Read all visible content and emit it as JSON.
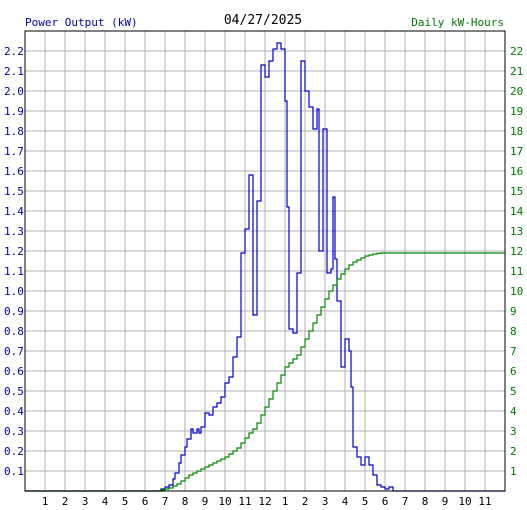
{
  "header": {
    "left_title": "Power Output (kW)",
    "center_title": "04/27/2025",
    "right_title": "Daily kW-Hours"
  },
  "colors": {
    "grid": "#b0b0b0",
    "plot_border": "#000000",
    "power": "#0000cc",
    "energy": "#008800",
    "left_text": "#0000aa",
    "right_text": "#007700"
  },
  "chart_data": {
    "type": "line",
    "x_ticks": [
      "1",
      "2",
      "3",
      "4",
      "5",
      "6",
      "7",
      "8",
      "9",
      "10",
      "11",
      "12",
      "1",
      "2",
      "3",
      "4",
      "5",
      "6",
      "7",
      "8",
      "9",
      "10",
      "11"
    ],
    "xlim": [
      0,
      24
    ],
    "y_left": {
      "ylim": [
        0,
        2.3
      ],
      "ticks": [
        "0.1",
        "0.2",
        "0.3",
        "0.4",
        "0.5",
        "0.6",
        "0.7",
        "0.8",
        "0.9",
        "1.0",
        "1.1",
        "1.2",
        "1.3",
        "1.4",
        "1.5",
        "1.6",
        "1.7",
        "1.8",
        "1.9",
        "2.0",
        "2.1",
        "2.2"
      ]
    },
    "y_right": {
      "ylim": [
        0,
        23
      ],
      "ticks": [
        "1",
        "2",
        "3",
        "4",
        "5",
        "6",
        "7",
        "8",
        "9",
        "10",
        "11",
        "12",
        "13",
        "14",
        "15",
        "16",
        "17",
        "18",
        "19",
        "20",
        "21",
        "22"
      ]
    },
    "grid": true,
    "series": [
      {
        "name": "Power Output (kW)",
        "axis": "left",
        "step": true,
        "points": [
          [
            0,
            0
          ],
          [
            6.7,
            0
          ],
          [
            6.8,
            0.01
          ],
          [
            7.0,
            0.02
          ],
          [
            7.2,
            0.03
          ],
          [
            7.4,
            0.06
          ],
          [
            7.5,
            0.09
          ],
          [
            7.7,
            0.14
          ],
          [
            7.8,
            0.18
          ],
          [
            8.0,
            0.22
          ],
          [
            8.1,
            0.26
          ],
          [
            8.3,
            0.31
          ],
          [
            8.4,
            0.29
          ],
          [
            8.6,
            0.31
          ],
          [
            8.7,
            0.29
          ],
          [
            8.8,
            0.32
          ],
          [
            9.0,
            0.39
          ],
          [
            9.2,
            0.38
          ],
          [
            9.4,
            0.42
          ],
          [
            9.6,
            0.44
          ],
          [
            9.8,
            0.47
          ],
          [
            10.0,
            0.54
          ],
          [
            10.2,
            0.57
          ],
          [
            10.4,
            0.67
          ],
          [
            10.6,
            0.77
          ],
          [
            10.8,
            1.19
          ],
          [
            11.0,
            1.31
          ],
          [
            11.2,
            1.58
          ],
          [
            11.4,
            0.88
          ],
          [
            11.6,
            1.45
          ],
          [
            11.8,
            2.13
          ],
          [
            12.0,
            2.07
          ],
          [
            12.2,
            2.15
          ],
          [
            12.4,
            2.21
          ],
          [
            12.6,
            2.24
          ],
          [
            12.8,
            2.21
          ],
          [
            13.0,
            1.95
          ],
          [
            13.1,
            1.42
          ],
          [
            13.2,
            0.81
          ],
          [
            13.4,
            0.79
          ],
          [
            13.6,
            1.09
          ],
          [
            13.8,
            2.15
          ],
          [
            14.0,
            2.0
          ],
          [
            14.2,
            1.92
          ],
          [
            14.4,
            1.81
          ],
          [
            14.6,
            1.91
          ],
          [
            14.7,
            1.2
          ],
          [
            14.9,
            1.81
          ],
          [
            15.1,
            1.09
          ],
          [
            15.3,
            1.11
          ],
          [
            15.4,
            1.47
          ],
          [
            15.5,
            1.16
          ],
          [
            15.6,
            0.95
          ],
          [
            15.8,
            0.62
          ],
          [
            16.0,
            0.76
          ],
          [
            16.2,
            0.7
          ],
          [
            16.3,
            0.52
          ],
          [
            16.4,
            0.22
          ],
          [
            16.6,
            0.17
          ],
          [
            16.8,
            0.13
          ],
          [
            17.0,
            0.17
          ],
          [
            17.2,
            0.13
          ],
          [
            17.4,
            0.08
          ],
          [
            17.6,
            0.03
          ],
          [
            17.8,
            0.02
          ],
          [
            18.0,
            0.01
          ],
          [
            18.2,
            0.02
          ],
          [
            18.4,
            0.0
          ],
          [
            24,
            0
          ]
        ]
      },
      {
        "name": "Daily kW-Hours",
        "axis": "right",
        "step": true,
        "points": [
          [
            0,
            0
          ],
          [
            6.6,
            0
          ],
          [
            6.8,
            0.05
          ],
          [
            7.0,
            0.1
          ],
          [
            7.2,
            0.15
          ],
          [
            7.4,
            0.25
          ],
          [
            7.6,
            0.35
          ],
          [
            7.8,
            0.5
          ],
          [
            8.0,
            0.65
          ],
          [
            8.2,
            0.8
          ],
          [
            8.4,
            0.9
          ],
          [
            8.6,
            1.0
          ],
          [
            8.8,
            1.1
          ],
          [
            9.0,
            1.2
          ],
          [
            9.2,
            1.3
          ],
          [
            9.4,
            1.4
          ],
          [
            9.6,
            1.5
          ],
          [
            9.8,
            1.6
          ],
          [
            10.0,
            1.7
          ],
          [
            10.2,
            1.85
          ],
          [
            10.4,
            2.0
          ],
          [
            10.6,
            2.15
          ],
          [
            10.8,
            2.4
          ],
          [
            11.0,
            2.65
          ],
          [
            11.2,
            2.9
          ],
          [
            11.4,
            3.1
          ],
          [
            11.6,
            3.4
          ],
          [
            11.8,
            3.8
          ],
          [
            12.0,
            4.2
          ],
          [
            12.2,
            4.6
          ],
          [
            12.4,
            5.0
          ],
          [
            12.6,
            5.4
          ],
          [
            12.8,
            5.8
          ],
          [
            13.0,
            6.2
          ],
          [
            13.2,
            6.4
          ],
          [
            13.4,
            6.6
          ],
          [
            13.6,
            6.8
          ],
          [
            13.8,
            7.2
          ],
          [
            14.0,
            7.6
          ],
          [
            14.2,
            8.0
          ],
          [
            14.4,
            8.4
          ],
          [
            14.6,
            8.8
          ],
          [
            14.8,
            9.2
          ],
          [
            15.0,
            9.6
          ],
          [
            15.2,
            10.0
          ],
          [
            15.4,
            10.3
          ],
          [
            15.6,
            10.6
          ],
          [
            15.8,
            10.85
          ],
          [
            16.0,
            11.1
          ],
          [
            16.2,
            11.3
          ],
          [
            16.4,
            11.45
          ],
          [
            16.6,
            11.55
          ],
          [
            16.8,
            11.65
          ],
          [
            17.0,
            11.75
          ],
          [
            17.2,
            11.8
          ],
          [
            17.4,
            11.85
          ],
          [
            17.6,
            11.88
          ],
          [
            17.8,
            11.9
          ],
          [
            24,
            11.9
          ]
        ]
      }
    ]
  }
}
